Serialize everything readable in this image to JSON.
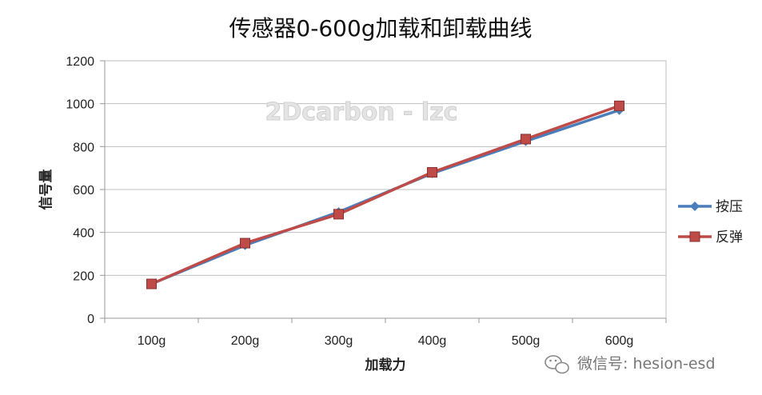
{
  "chart_data": {
    "type": "line",
    "title": "传感器0-600g加载和卸载曲线",
    "xlabel": "加载力",
    "ylabel": "信号量",
    "categories": [
      "100g",
      "200g",
      "300g",
      "400g",
      "500g",
      "600g"
    ],
    "ylim": [
      0,
      1200
    ],
    "yticks": [
      "0",
      "200",
      "400",
      "600",
      "800",
      "1000",
      "1200"
    ],
    "grid": true,
    "legend_position": "right",
    "series": [
      {
        "name": "按压",
        "color": "#4a7ebb",
        "marker": "diamond",
        "values": [
          160,
          340,
          495,
          675,
          825,
          970
        ]
      },
      {
        "name": "反弹",
        "color": "#be4b48",
        "marker": "square",
        "values": [
          160,
          350,
          485,
          680,
          835,
          990
        ]
      }
    ]
  },
  "watermark": {
    "text": "2Dcarbon - lzc"
  },
  "wechat": {
    "text": "微信号: hesion-esd",
    "icon": "wechat-icon"
  }
}
